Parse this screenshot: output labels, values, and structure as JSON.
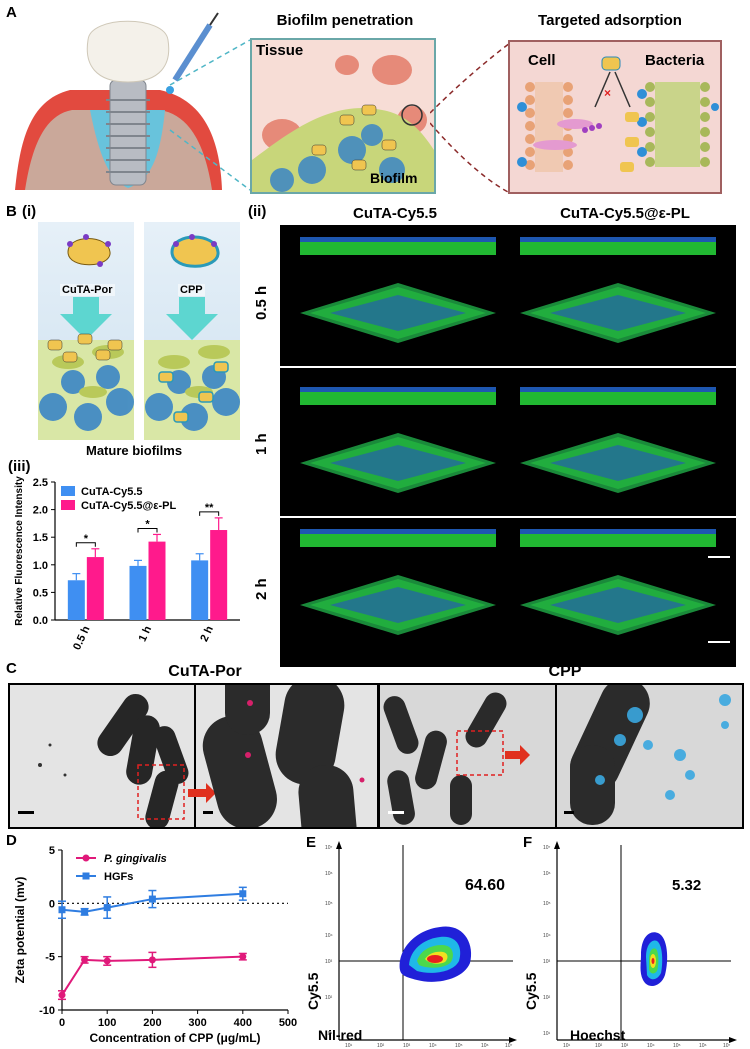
{
  "panelA": {
    "label": "A",
    "titles": [
      "Biofilm penetration",
      "Targeted adsorption"
    ],
    "tissue": "Tissue",
    "biofilm": "Biofilm",
    "cell": "Cell",
    "bacteria": "Bacteria"
  },
  "panelB": {
    "label": "B",
    "i_label": "(i)",
    "ii_label": "(ii)",
    "iii_label": "(iii)",
    "cutapor": "CuTA-Por",
    "cpp": "CPP",
    "mature": "Mature biofilms",
    "col1": "CuTA-Cy5.5",
    "col2": "CuTA-Cy5.5@ε-PL",
    "rows": [
      "0.5 h",
      "1 h",
      "2 h"
    ]
  },
  "panelC": {
    "label": "C",
    "title1": "CuTA-Por",
    "title2": "CPP"
  },
  "panelD": {
    "label": "D",
    "xlabel": "Concentration of CPP (μg/mL)",
    "ylabel": "Zeta potential (mv)",
    "legend1": "P. gingivalis",
    "legend2": "HGFs"
  },
  "panelE": {
    "label": "E",
    "value": "64.60",
    "xlabel": "Nil-red",
    "ylabel": "Cy5.5"
  },
  "panelF": {
    "label": "F",
    "value": "5.32",
    "xlabel": "Hoechst",
    "ylabel": "Cy5.5"
  },
  "chart_data": [
    {
      "type": "bar",
      "ylabel": "Relative Fluorescence Intensity",
      "categories": [
        "0.5 h",
        "1 h",
        "2 h"
      ],
      "ylim": [
        0,
        2.5
      ],
      "yticks": [
        "0.0",
        "0.5",
        "1.0",
        "1.5",
        "2.0",
        "2.5"
      ],
      "legend_position": "top-left",
      "series": [
        {
          "name": "CuTA-Cy5.5",
          "color": "#3f8ff2",
          "values": [
            0.72,
            0.98,
            1.08
          ],
          "err": [
            0.12,
            0.1,
            0.12
          ]
        },
        {
          "name": "CuTA-Cy5.5@ε-PL",
          "color": "#ff1a8c",
          "values": [
            1.14,
            1.42,
            1.63
          ],
          "err": [
            0.15,
            0.13,
            0.22
          ]
        }
      ],
      "significance": [
        "*",
        "*",
        "**"
      ]
    },
    {
      "type": "line",
      "xlabel": "Concentration of CPP (μg/mL)",
      "ylabel": "Zeta potential (mv)",
      "xlim": [
        0,
        500
      ],
      "ylim": [
        -10,
        5
      ],
      "xticks": [
        "0",
        "100",
        "200",
        "300",
        "400",
        "500"
      ],
      "yticks": [
        "-10",
        "-5",
        "0",
        "5"
      ],
      "legend_position": "top-left",
      "series": [
        {
          "name": "P. gingivalis",
          "color": "#e0197a",
          "x": [
            0,
            50,
            100,
            200,
            400
          ],
          "y": [
            -8.6,
            -5.3,
            -5.4,
            -5.3,
            -5.0
          ],
          "err": [
            0.4,
            0.3,
            0.4,
            0.7,
            0.3
          ]
        },
        {
          "name": "HGFs",
          "color": "#2f7de1",
          "x": [
            0,
            50,
            100,
            200,
            400
          ],
          "y": [
            -0.6,
            -0.8,
            -0.4,
            0.4,
            0.9
          ],
          "err": [
            0.8,
            0.3,
            1.0,
            0.8,
            0.6
          ]
        }
      ]
    }
  ]
}
